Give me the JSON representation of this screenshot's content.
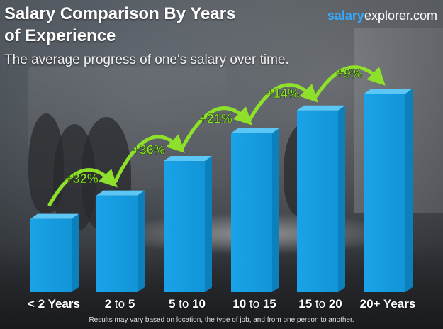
{
  "header": {
    "title_line1": "Salary Comparison By Years",
    "title_line2": "of Experience",
    "subtitle": "The average progress of one's salary over time.",
    "brand_part1": "salary",
    "brand_part2": "explorer.com"
  },
  "footnote": "Results may vary based on location, the type of job, and from one person to another.",
  "colors": {
    "bar_front": "#1aa3e8",
    "bar_side": "#0c7fbd",
    "bar_top": "#5cc6f5",
    "arrow_green": "#8ee02a",
    "brand_blue": "#33aaff"
  },
  "chart_data": {
    "type": "bar",
    "title": "Salary Comparison By Years of Experience",
    "categories": [
      {
        "pre": "< 2 Years",
        "mid": "",
        "post": ""
      },
      {
        "pre": "2",
        "mid": " to ",
        "post": "5"
      },
      {
        "pre": "5",
        "mid": " to ",
        "post": "10"
      },
      {
        "pre": "10",
        "mid": " to ",
        "post": "15"
      },
      {
        "pre": "15",
        "mid": " to ",
        "post": "20"
      },
      {
        "pre": "20+ Years",
        "mid": "",
        "post": ""
      }
    ],
    "values": [
      100,
      132,
      179,
      217,
      248,
      271
    ],
    "value_note": "relative salary index (< 2 Years = 100), estimated from bar heights",
    "increments": [
      "+32%",
      "+36%",
      "+21%",
      "+14%",
      "+9%"
    ],
    "grid": false,
    "legend": "none"
  }
}
